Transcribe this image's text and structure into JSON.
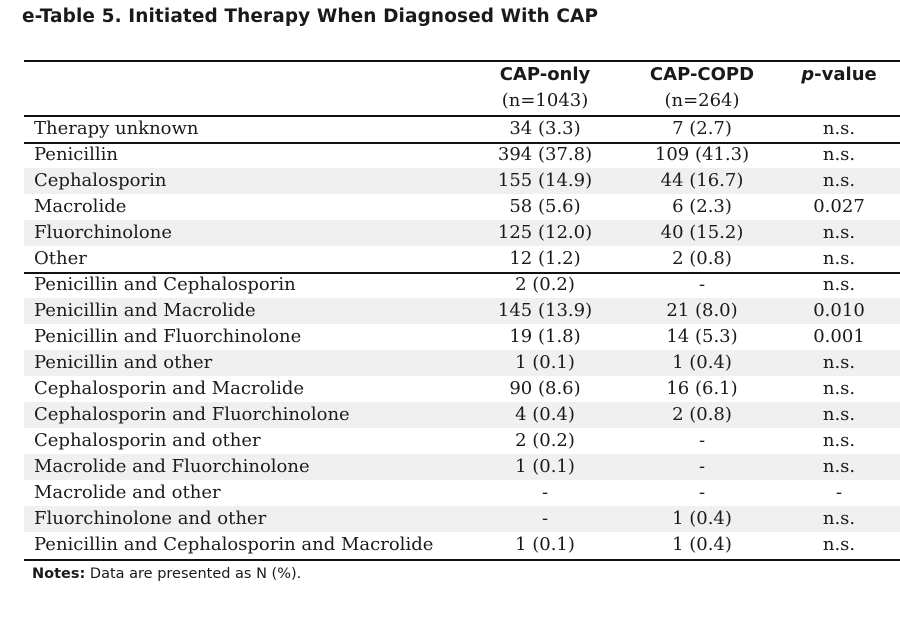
{
  "title": "e-Table 5.  Initiated Therapy When Diagnosed With CAP",
  "headers": {
    "col_a": {
      "name": "CAP-only",
      "n": "(n=1043)"
    },
    "col_b": {
      "name": "CAP-COPD",
      "n": "(n=264)"
    },
    "col_p": {
      "prefix": "p",
      "suffix": "-value"
    }
  },
  "rows": [
    {
      "label": "Therapy unknown",
      "a": "34 (3.3)",
      "b": "7 (2.7)",
      "p": "n.s."
    },
    {
      "label": "Penicillin",
      "a": "394 (37.8)",
      "b": "109 (41.3)",
      "p": "n.s."
    },
    {
      "label": "Cephalosporin",
      "a": "155 (14.9)",
      "b": "44 (16.7)",
      "p": "n.s."
    },
    {
      "label": "Macrolide",
      "a": "58 (5.6)",
      "b": "6 (2.3)",
      "p": "0.027"
    },
    {
      "label": "Fluorchinolone",
      "a": "125 (12.0)",
      "b": "40 (15.2)",
      "p": "n.s."
    },
    {
      "label": "Other",
      "a": "12 (1.2)",
      "b": "2 (0.8)",
      "p": "n.s."
    },
    {
      "label": "Penicillin and Cephalosporin",
      "a": "2 (0.2)",
      "b": "-",
      "p": "n.s."
    },
    {
      "label": "Penicillin and Macrolide",
      "a": "145 (13.9)",
      "b": "21 (8.0)",
      "p": "0.010"
    },
    {
      "label": "Penicillin and Fluorchinolone",
      "a": "19 (1.8)",
      "b": "14 (5.3)",
      "p": "0.001"
    },
    {
      "label": "Penicillin and other",
      "a": "1 (0.1)",
      "b": "1 (0.4)",
      "p": "n.s."
    },
    {
      "label": "Cephalosporin and Macrolide",
      "a": "90 (8.6)",
      "b": "16 (6.1)",
      "p": "n.s."
    },
    {
      "label": "Cephalosporin and Fluorchinolone",
      "a": "4 (0.4)",
      "b": "2 (0.8)",
      "p": "n.s."
    },
    {
      "label": "Cephalosporin and other",
      "a": "2 (0.2)",
      "b": "-",
      "p": "n.s."
    },
    {
      "label": "Macrolide and Fluorchinolone",
      "a": "1 (0.1)",
      "b": "-",
      "p": "n.s."
    },
    {
      "label": "Macrolide and other",
      "a": "-",
      "b": "-",
      "p": "-"
    },
    {
      "label": "Fluorchinolone and other",
      "a": "-",
      "b": "1 (0.4)",
      "p": "n.s."
    },
    {
      "label": "Penicillin and Cephalosporin and Macrolide",
      "a": "1 (0.1)",
      "b": "1 (0.4)",
      "p": "n.s."
    }
  ],
  "notes": {
    "label": "Notes:",
    "text": " Data are presented as N (%)."
  },
  "colors": {
    "shade": "#f0f0f0",
    "rule": "#111111"
  }
}
